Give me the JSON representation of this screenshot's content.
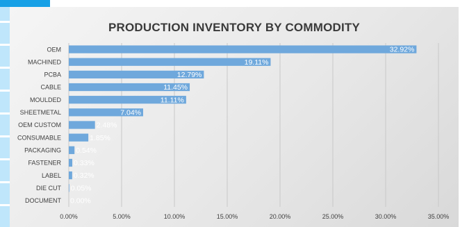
{
  "chart_data": {
    "type": "bar",
    "orientation": "horizontal",
    "title": "PRODUCTION INVENTORY BY COMMODITY",
    "categories": [
      "OEM",
      "MACHINED",
      "PCBA",
      "CABLE",
      "MOULDED",
      "SHEETMETAL",
      "OEM CUSTOM",
      "CONSUMABLE",
      "PACKAGING",
      "FASTENER",
      "LABEL",
      "DIE CUT",
      "DOCUMENT"
    ],
    "values": [
      32.92,
      19.11,
      12.79,
      11.45,
      11.11,
      7.04,
      2.48,
      1.85,
      0.54,
      0.33,
      0.32,
      0.05,
      0.0
    ],
    "data_labels": [
      "32.92%",
      "19.11%",
      "12.79%",
      "11.45%",
      "11.11%",
      "7.04%",
      "2.48%",
      "1.85%",
      "0.54%",
      "0.33%",
      "0.32%",
      "0.05%",
      "0.00%"
    ],
    "xticks": [
      "0.00%",
      "5.00%",
      "10.00%",
      "15.00%",
      "20.00%",
      "25.00%",
      "30.00%",
      "35.00%"
    ],
    "xlim": [
      0,
      35
    ],
    "xlabel": "",
    "ylabel": "",
    "grid": true,
    "bar_color": "#6fa8dc",
    "grid_color": "#c8c8c8"
  }
}
